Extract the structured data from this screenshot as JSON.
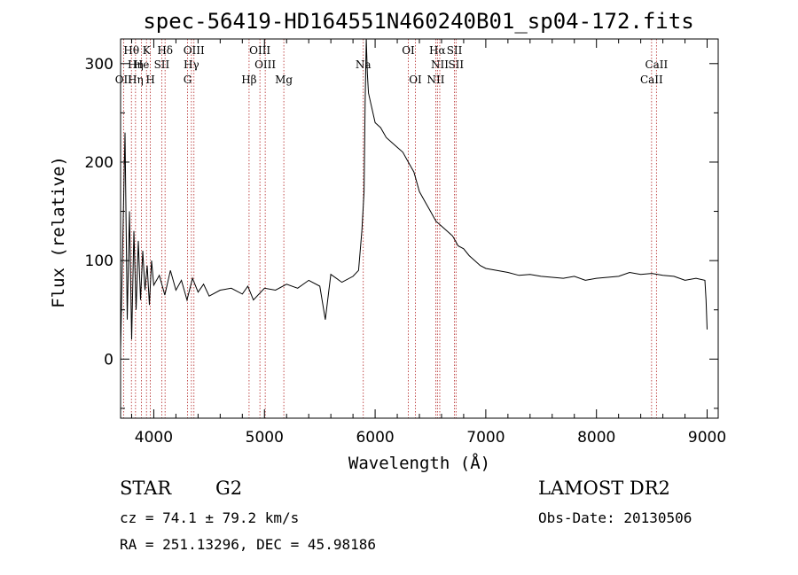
{
  "chart_data": {
    "type": "line",
    "title": "spec-56419-HD164551N460240B01_sp04-172.fits",
    "xlabel": "Wavelength (Å)",
    "ylabel": "Flux (relative)",
    "xlim": [
      3700,
      9100
    ],
    "ylim": [
      -60,
      325
    ],
    "xticks": [
      4000,
      5000,
      6000,
      7000,
      8000,
      9000
    ],
    "yticks": [
      0,
      100,
      200,
      300
    ],
    "grid": false,
    "series": [
      {
        "x": [
          3700,
          3740,
          3760,
          3780,
          3800,
          3820,
          3840,
          3860,
          3880,
          3900,
          3920,
          3940,
          3960,
          3980,
          4000,
          4050,
          4100,
          4150,
          4200,
          4250,
          4300,
          4350,
          4400,
          4450,
          4500,
          4600,
          4700,
          4800,
          4850,
          4900,
          5000,
          5100,
          5200,
          5300,
          5400,
          5500,
          5550,
          5600,
          5700,
          5800,
          5850,
          5880,
          5900,
          5910,
          5920,
          5930,
          5940,
          5960,
          5980,
          6000,
          6050,
          6100,
          6150,
          6200,
          6250,
          6300,
          6350,
          6400,
          6450,
          6500,
          6550,
          6600,
          6650,
          6700,
          6750,
          6800,
          6850,
          6900,
          6950,
          7000,
          7100,
          7200,
          7300,
          7400,
          7500,
          7600,
          7700,
          7800,
          7900,
          8000,
          8100,
          8200,
          8300,
          8400,
          8500,
          8600,
          8700,
          8800,
          8900,
          8980,
          8990,
          9000
        ],
        "y": [
          10,
          230,
          40,
          150,
          20,
          130,
          50,
          120,
          60,
          110,
          70,
          95,
          55,
          100,
          75,
          85,
          65,
          90,
          70,
          80,
          60,
          82,
          68,
          76,
          64,
          70,
          72,
          66,
          74,
          60,
          72,
          70,
          76,
          72,
          80,
          74,
          40,
          86,
          78,
          84,
          90,
          130,
          170,
          260,
          325,
          290,
          270,
          260,
          250,
          240,
          235,
          225,
          220,
          215,
          210,
          200,
          190,
          170,
          160,
          150,
          140,
          135,
          130,
          125,
          115,
          112,
          105,
          100,
          95,
          92,
          90,
          88,
          85,
          86,
          84,
          83,
          82,
          84,
          80,
          82,
          83,
          84,
          88,
          86,
          87,
          85,
          84,
          80,
          82,
          80,
          60,
          30
        ]
      }
    ],
    "spectral_lines": [
      {
        "label": "Hθ",
        "x": 3798,
        "row": 0
      },
      {
        "label": "K",
        "x": 3934,
        "row": 0
      },
      {
        "label": "Hδ",
        "x": 4102,
        "row": 0
      },
      {
        "label": "OIII",
        "x": 4363,
        "row": 0
      },
      {
        "label": "OIII",
        "x": 4959,
        "row": 0
      },
      {
        "label": "OI",
        "x": 6300,
        "row": 0
      },
      {
        "label": "Hα",
        "x": 6563,
        "row": 0
      },
      {
        "label": "SII",
        "x": 6717,
        "row": 0
      },
      {
        "label": "Hη",
        "x": 3835,
        "row": 1
      },
      {
        "label": "He",
        "x": 3889,
        "row": 1
      },
      {
        "label": "SII",
        "x": 4072,
        "row": 1
      },
      {
        "label": "Hγ",
        "x": 4340,
        "row": 1
      },
      {
        "label": "OIII",
        "x": 5007,
        "row": 1
      },
      {
        "label": "Na",
        "x": 5893,
        "row": 1
      },
      {
        "label": "NII",
        "x": 6584,
        "row": 1
      },
      {
        "label": "SII",
        "x": 6731,
        "row": 1
      },
      {
        "label": "CaII",
        "x": 8542,
        "row": 1
      },
      {
        "label": "OII",
        "x": 3727,
        "row": 2
      },
      {
        "label": "Hη",
        "x": 3835,
        "row": 2
      },
      {
        "label": "H",
        "x": 3969,
        "row": 2
      },
      {
        "label": "G",
        "x": 4305,
        "row": 2
      },
      {
        "label": "Hβ",
        "x": 4861,
        "row": 2
      },
      {
        "label": "Mg",
        "x": 5175,
        "row": 2
      },
      {
        "label": "OI",
        "x": 6364,
        "row": 2
      },
      {
        "label": "NII",
        "x": 6548,
        "row": 2
      },
      {
        "label": "CaII",
        "x": 8498,
        "row": 2
      }
    ]
  },
  "info": {
    "object_class": "STAR",
    "subclass": "G2",
    "survey": "LAMOST DR2",
    "cz": "cz = 74.1 ± 79.2 km/s",
    "obs_date": "Obs-Date: 20130506",
    "coords": "RA = 251.13296, DEC =  45.98186"
  }
}
